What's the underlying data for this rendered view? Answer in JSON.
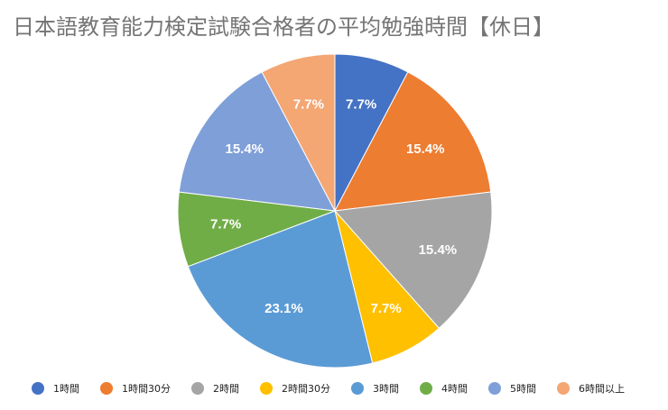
{
  "chart_data": {
    "type": "pie",
    "title": "日本語教育能力検定試験合格者の平均勉強時間【休日】",
    "categories": [
      "1時間",
      "1時間30分",
      "2時間",
      "2時間30分",
      "3時間",
      "4時間",
      "5時間",
      "6時間以上"
    ],
    "values": [
      7.7,
      15.4,
      15.4,
      7.7,
      23.1,
      7.7,
      15.4,
      7.7
    ],
    "data_labels": [
      "7.7%",
      "15.4%",
      "15.4%",
      "7.7%",
      "23.1%",
      "7.7%",
      "15.4%",
      "7.7%"
    ],
    "colors": [
      "#4472c4",
      "#ed7d31",
      "#a5a5a5",
      "#ffc000",
      "#5b9bd5",
      "#70ad47",
      "#7f9fd8",
      "#f4a673"
    ],
    "start_angle": "12 o'clock",
    "direction": "clockwise",
    "legend_position": "bottom"
  }
}
